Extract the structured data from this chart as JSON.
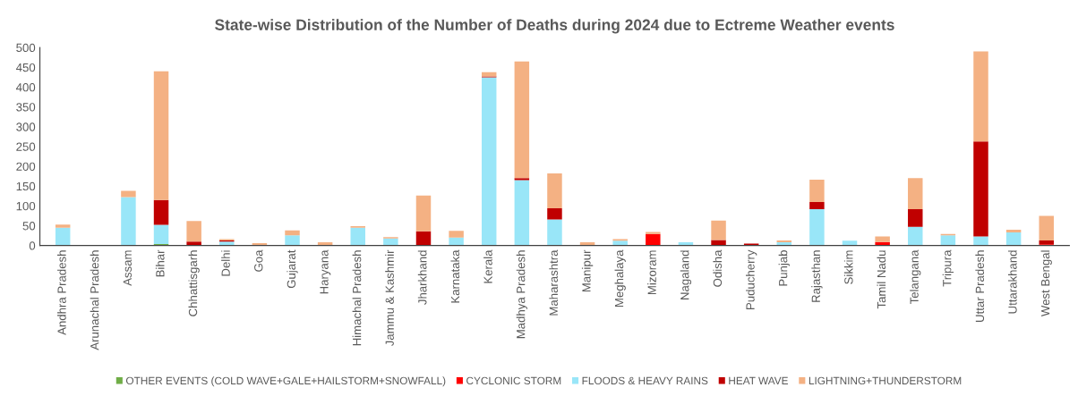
{
  "chart_data": {
    "type": "bar",
    "stacked": true,
    "title": "State-wise Distribution of the Number of Deaths during 2024 due to Ectreme Weather events",
    "categories": [
      "Andhra Pradesh",
      "Arunachal Pradesh",
      "Assam",
      "Bihar",
      "Chhattisgarh",
      "Delhi",
      "Goa",
      "Gujarat",
      "Haryana",
      "Himachal Pradesh",
      "Jammu & Kashmir",
      "Jharkhand",
      "Karnataka",
      "Kerala",
      "Madhya Pradesh",
      "Maharashtra",
      "Manipur",
      "Meghalaya",
      "Mizoram",
      "Nagaland",
      "Odisha",
      "Puducherry",
      "Punjab",
      "Rajasthan",
      "Sikkim",
      "Tamil Nadu",
      "Telangana",
      "Tripura",
      "Uttar Pradesh",
      "Uttarakhand",
      "West Bengal"
    ],
    "series": [
      {
        "name": "OTHER EVENTS (COLD WAVE+GALE+HAILSTORM+SNOWFALL)",
        "color": "#70ad47",
        "values": [
          0,
          0,
          0,
          4,
          0,
          0,
          0,
          0,
          0,
          0,
          0,
          0,
          0,
          0,
          0,
          0,
          0,
          0,
          0,
          0,
          0,
          0,
          0,
          0,
          0,
          0,
          0,
          0,
          0,
          0,
          0
        ]
      },
      {
        "name": "CYCLONIC STORM",
        "color": "#ff0000",
        "values": [
          0,
          0,
          0,
          0,
          0,
          0,
          0,
          0,
          0,
          0,
          0,
          0,
          0,
          0,
          0,
          0,
          0,
          0,
          29,
          0,
          0,
          0,
          0,
          0,
          0,
          9,
          0,
          0,
          0,
          0,
          3
        ]
      },
      {
        "name": "FLOODS & HEAVY RAINS",
        "color": "#99e6f8",
        "values": [
          45,
          null,
          122,
          48,
          0,
          10,
          null,
          26,
          null,
          45,
          18,
          0,
          20,
          425,
          165,
          66,
          0,
          12,
          0,
          8,
          0,
          0,
          8,
          92,
          12,
          0,
          47,
          26,
          23,
          33,
          0
        ]
      },
      {
        "name": "HEAT WAVE",
        "color": "#c00000",
        "values": [
          0,
          0,
          0,
          63,
          10,
          3,
          0,
          0,
          0,
          0,
          0,
          36,
          0,
          2,
          5,
          28,
          0,
          null,
          0,
          null,
          14,
          5,
          0,
          18,
          0,
          0,
          45,
          0,
          240,
          0,
          10
        ]
      },
      {
        "name": "LIGHTNING+THUNDERSTORM",
        "color": "#f4b183",
        "values": [
          8,
          0,
          16,
          325,
          52,
          3,
          6,
          12,
          8,
          4,
          3,
          90,
          17,
          11,
          295,
          88,
          8,
          4,
          5,
          0,
          49,
          0,
          5,
          56,
          0,
          14,
          78,
          3,
          227,
          7,
          62
        ]
      }
    ],
    "ylim": [
      0,
      500
    ],
    "yticks": [
      0,
      50,
      100,
      150,
      200,
      250,
      300,
      350,
      400,
      450,
      500
    ],
    "grid": false,
    "legend": "bottom"
  }
}
